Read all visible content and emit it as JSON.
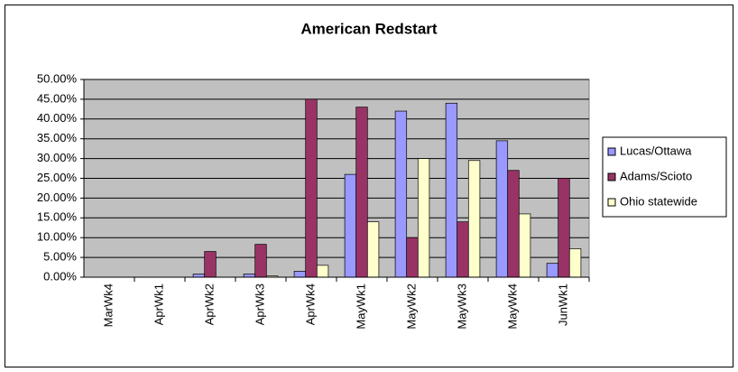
{
  "chart_data": {
    "type": "bar",
    "title": "American Redstart",
    "categories": [
      "MarWk4",
      "AprWk1",
      "AprWk2",
      "AprWk3",
      "AprWk4",
      "MayWk1",
      "MayWk2",
      "MayWk3",
      "MayWk4",
      "JunWk1"
    ],
    "series": [
      {
        "name": "Lucas/Ottawa",
        "color": "#9999ff",
        "values": [
          0,
          0,
          0.8,
          0.8,
          1.5,
          26,
          42,
          44,
          34.5,
          3.5
        ]
      },
      {
        "name": "Adams/Scioto",
        "color": "#993366",
        "values": [
          0,
          0,
          6.5,
          8.3,
          45,
          43,
          10,
          14,
          27,
          25
        ]
      },
      {
        "name": "Ohio statewide",
        "color": "#ffffcc",
        "values": [
          0,
          0,
          0,
          0.3,
          3,
          14,
          30,
          29.5,
          16,
          7.2
        ]
      }
    ],
    "ylim": [
      0,
      50
    ],
    "yticks": [
      {
        "value": 0,
        "label": "0.00%"
      },
      {
        "value": 5,
        "label": "5.00%"
      },
      {
        "value": 10,
        "label": "10.00%"
      },
      {
        "value": 15,
        "label": "15.00%"
      },
      {
        "value": 20,
        "label": "20.00%"
      },
      {
        "value": 25,
        "label": "25.00%"
      },
      {
        "value": 30,
        "label": "30.00%"
      },
      {
        "value": 35,
        "label": "35.00%"
      },
      {
        "value": 40,
        "label": "40.00%"
      },
      {
        "value": 45,
        "label": "45.00%"
      },
      {
        "value": 50,
        "label": "50.00%"
      }
    ],
    "grid": true,
    "legend": "right",
    "plot_background": "#c0c0c0"
  }
}
